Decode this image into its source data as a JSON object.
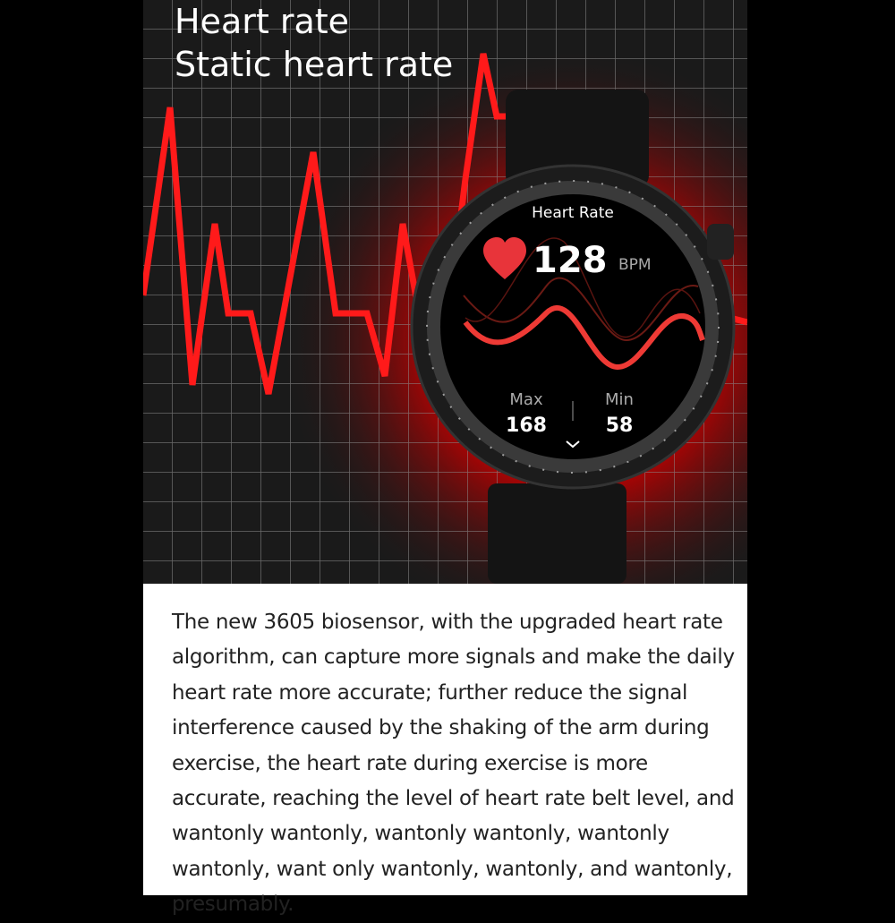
{
  "headline": {
    "line1": "Heart rate",
    "line2": "Static heart rate"
  },
  "watch": {
    "screen_title": "Heart Rate",
    "bpm_value": "128",
    "bpm_unit": "BPM",
    "max_label": "Max",
    "max_value": "168",
    "min_label": "Min",
    "min_value": "58",
    "icons": [
      "heart-icon",
      "chevron-down-icon"
    ]
  },
  "description": "The new 3605 biosensor, with the upgraded heart rate algorithm, can capture more signals and make the daily heart rate more accurate; further reduce the signal interference caused by the shaking of the arm during exercise, the heart rate during exercise is more accurate, reaching the level of heart rate belt level, and wantonly wantonly, wantonly wantonly, wantonly wantonly, want only wantonly, wantonly, and wantonly, presumably.",
  "colors": {
    "accent": "#e8191c",
    "background": "#1a1a1a",
    "text": "#222222"
  }
}
